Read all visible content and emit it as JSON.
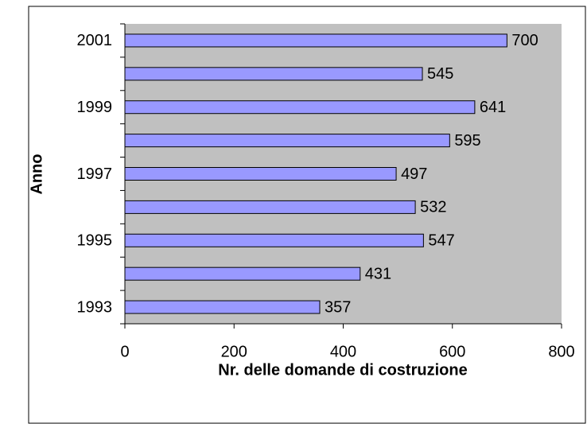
{
  "chart_data": {
    "type": "hbar",
    "x_label": "Nr. delle domande di costruzione",
    "y_label": "Anno",
    "categories": [
      "1993",
      null,
      "1995",
      null,
      "1997",
      null,
      "1999",
      null,
      "2001"
    ],
    "values": [
      357,
      431,
      547,
      532,
      497,
      595,
      641,
      545,
      700
    ],
    "color": "#9999ff",
    "plot_background": "#c0c0c0",
    "xlim": [
      0,
      800
    ],
    "xticks": [
      0,
      200,
      400,
      600,
      800
    ],
    "grid": false
  }
}
